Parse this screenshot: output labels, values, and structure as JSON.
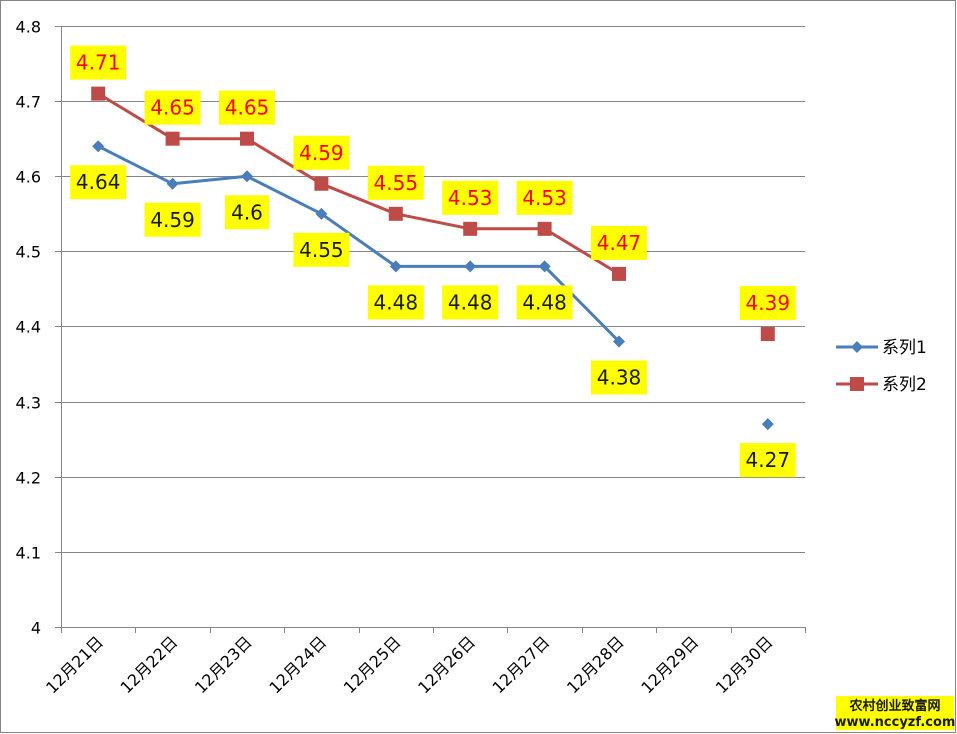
{
  "chart_data": {
    "type": "line",
    "categories": [
      "12月21日",
      "12月22日",
      "12月23日",
      "12月24日",
      "12月25日",
      "12月26日",
      "12月27日",
      "12月28日",
      "12月29日",
      "12月30日"
    ],
    "series": [
      {
        "name": "系列1",
        "color": "#4a7ebb",
        "marker": "diamond",
        "label_color": "#1a1a1a",
        "values": [
          4.64,
          4.59,
          4.6,
          4.55,
          4.48,
          4.48,
          4.48,
          4.38,
          null,
          4.27
        ],
        "labels": [
          "4.64",
          "4.59",
          "4.6",
          "4.55",
          "4.48",
          "4.48",
          "4.48",
          "4.38",
          null,
          "4.27"
        ]
      },
      {
        "name": "系列2",
        "color": "#be4b48",
        "marker": "square",
        "label_color": "#ff0000",
        "values": [
          4.71,
          4.65,
          4.65,
          4.59,
          4.55,
          4.53,
          4.53,
          4.47,
          null,
          4.39
        ],
        "labels": [
          "4.71",
          "4.65",
          "4.65",
          "4.59",
          "4.55",
          "4.53",
          "4.53",
          "4.47",
          null,
          "4.39"
        ]
      }
    ],
    "ylim": [
      4,
      4.8
    ],
    "yticks": [
      "4",
      "4.1",
      "4.2",
      "4.3",
      "4.4",
      "4.5",
      "4.6",
      "4.7",
      "4.8"
    ],
    "ytick_values": [
      4,
      4.1,
      4.2,
      4.3,
      4.4,
      4.5,
      4.6,
      4.7,
      4.8
    ],
    "grid": true,
    "legend": "right",
    "data_label_background": "#ffff00",
    "title": "",
    "xlabel": "",
    "ylabel": ""
  },
  "watermark": {
    "line1": "农村创业致富网",
    "line2": "www.nccyzf.com"
  }
}
